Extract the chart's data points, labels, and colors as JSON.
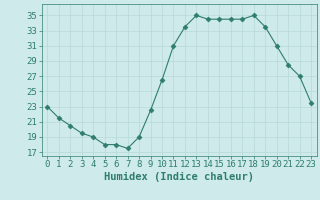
{
  "x": [
    0,
    1,
    2,
    3,
    4,
    5,
    6,
    7,
    8,
    9,
    10,
    11,
    12,
    13,
    14,
    15,
    16,
    17,
    18,
    19,
    20,
    21,
    22,
    23
  ],
  "y": [
    23,
    21.5,
    20.5,
    19.5,
    19,
    18,
    18,
    17.5,
    19,
    22.5,
    26.5,
    31,
    33.5,
    35,
    34.5,
    34.5,
    34.5,
    34.5,
    35,
    33.5,
    31,
    28.5,
    27,
    23.5
  ],
  "line_color": "#2e7d6e",
  "marker": "D",
  "marker_size": 2.5,
  "bg_color": "#ceeaea",
  "grid_color": "#b8d8d8",
  "xlabel": "Humidex (Indice chaleur)",
  "xlabel_fontsize": 7.5,
  "ylabel_ticks": [
    17,
    19,
    21,
    23,
    25,
    27,
    29,
    31,
    33,
    35
  ],
  "ylim": [
    16.5,
    36.5
  ],
  "xlim": [
    -0.5,
    23.5
  ],
  "xtick_labels": [
    "0",
    "1",
    "2",
    "3",
    "4",
    "5",
    "6",
    "7",
    "8",
    "9",
    "10",
    "11",
    "12",
    "13",
    "14",
    "15",
    "16",
    "17",
    "18",
    "19",
    "20",
    "21",
    "22",
    "23"
  ],
  "tick_fontsize": 6.5
}
